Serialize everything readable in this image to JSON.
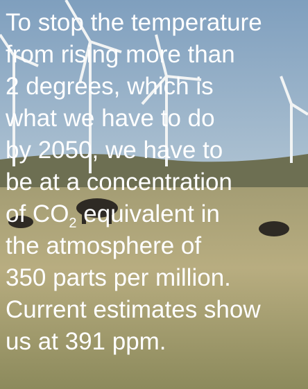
{
  "text": {
    "lines": [
      "To stop the temperature",
      "from rising more than",
      "2 degrees, which is",
      "what we have to do",
      "by 2050, we have to",
      "be at a concentration"
    ],
    "co2_line": {
      "before": "of CO",
      "subscript": "2",
      "after": " equivalent in"
    },
    "closing_lines": [
      "the atmosphere of",
      "350 parts per million.",
      "Current estimates show",
      "us at 391 ppm."
    ]
  }
}
